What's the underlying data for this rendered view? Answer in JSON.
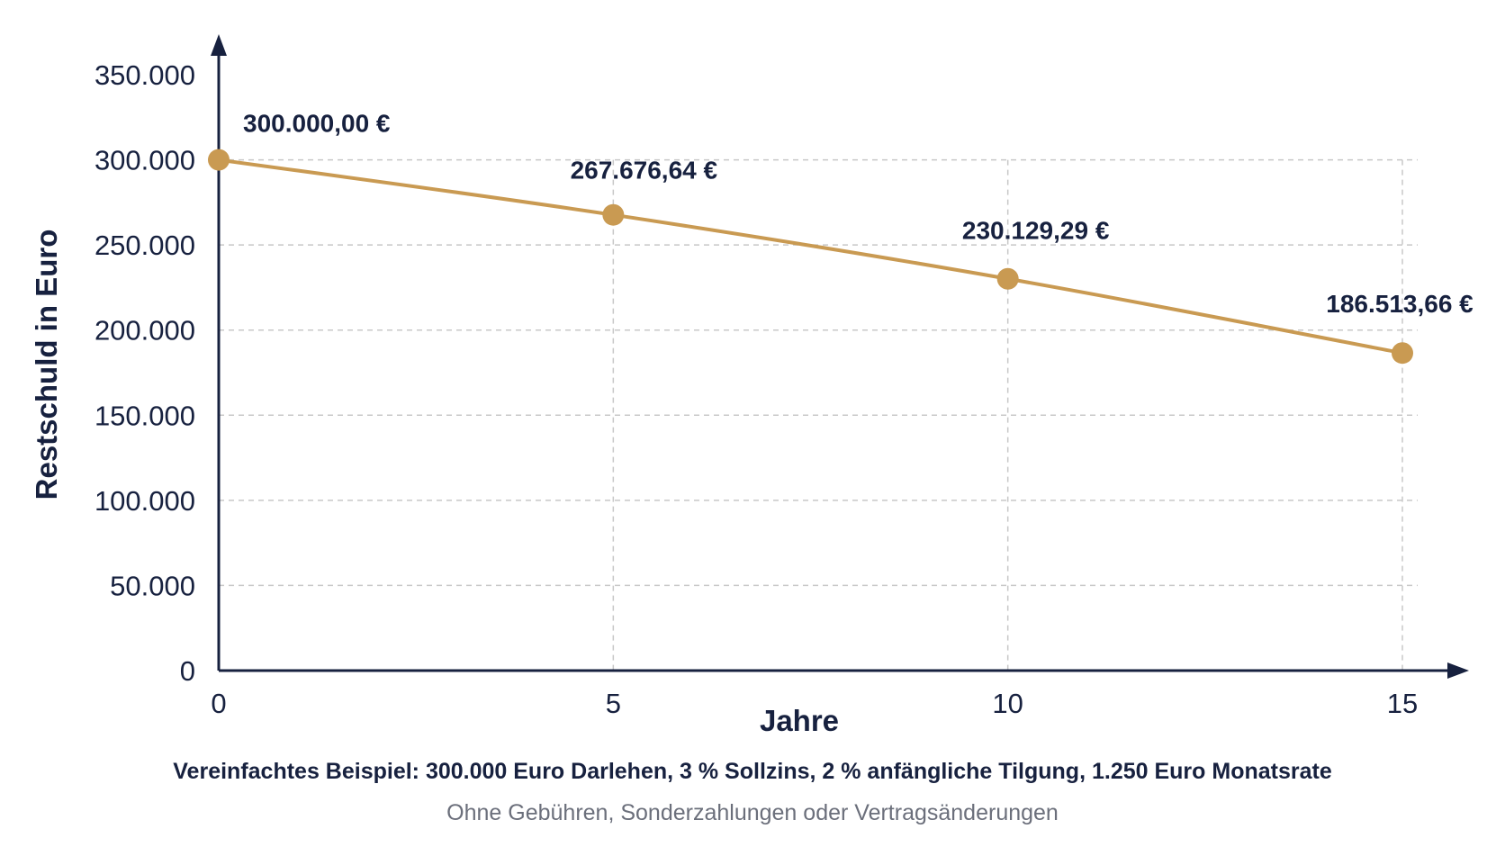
{
  "chart_data": {
    "type": "line",
    "title": "",
    "xlabel": "Jahre",
    "ylabel": "Restschuld in Euro",
    "x": [
      0,
      5,
      10,
      15
    ],
    "series": [
      {
        "values": [
          300000.0,
          267676.64,
          230129.29,
          186513.66
        ],
        "labels": [
          "300.000,00 €",
          "267.676,64 €",
          "230.129,29 €",
          "186.513,66 €"
        ],
        "color": "#c99a52"
      }
    ],
    "xticks": [
      0,
      5,
      10,
      15
    ],
    "xtick_labels": [
      "0",
      "5",
      "10",
      "15"
    ],
    "yticks": [
      0,
      50000,
      100000,
      150000,
      200000,
      250000,
      300000,
      350000
    ],
    "ytick_labels": [
      "0",
      "50.000",
      "100.000",
      "150.000",
      "200.000",
      "250.000",
      "300.000",
      "350.000"
    ],
    "xlim": [
      0,
      16.5
    ],
    "ylim": [
      0,
      350000
    ],
    "grid": true,
    "grid_style": "dashed",
    "legend": "none",
    "axis_color": "#17213f",
    "grid_color": "#c8c8c8"
  },
  "captions": {
    "main": "Vereinfachtes Beispiel: 300.000 Euro Darlehen, 3 % Sollzins, 2 % anfängliche Tilgung, 1.250 Euro Monatsrate",
    "sub": "Ohne Gebühren, Sonderzahlungen oder Vertragsänderungen"
  }
}
